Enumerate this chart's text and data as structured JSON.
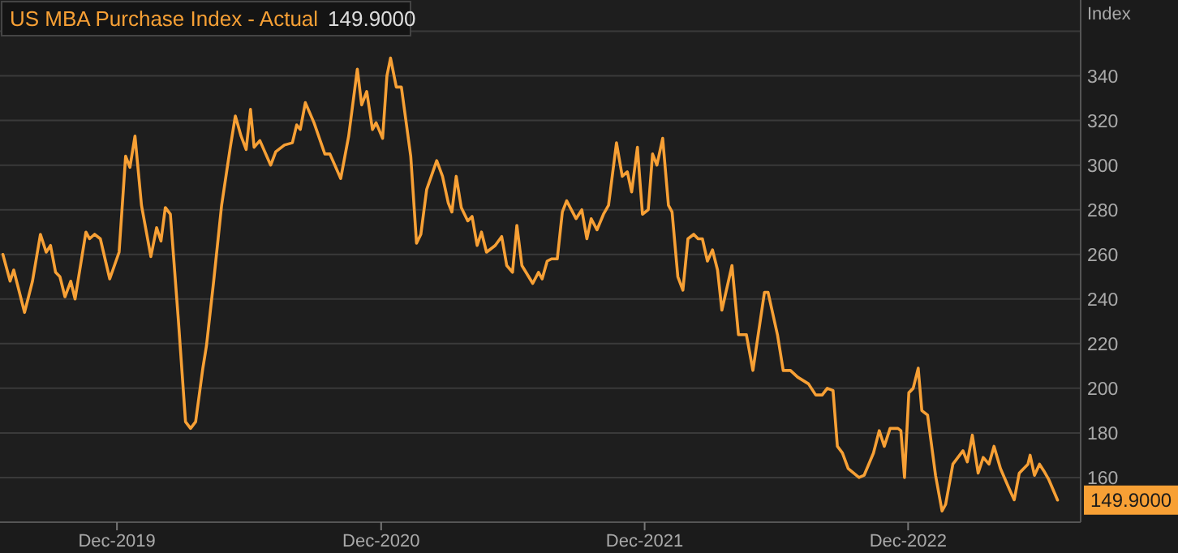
{
  "chart_data": {
    "type": "line",
    "title": "US MBA Purchase Index - Actual",
    "ylabel": "Index",
    "annotations": [
      "149.9000"
    ],
    "xlim": [
      "2019-06-22",
      "2023-07-28"
    ],
    "ylim": [
      140,
      374
    ],
    "xticks": [
      {
        "value": "2019-12-01",
        "label": "Dec-2019"
      },
      {
        "value": "2020-12-01",
        "label": "Dec-2020"
      },
      {
        "value": "2021-12-01",
        "label": "Dec-2021"
      },
      {
        "value": "2022-12-01",
        "label": "Dec-2022"
      }
    ],
    "yticks": [
      160,
      180,
      200,
      220,
      240,
      260,
      280,
      300,
      320,
      340,
      {
        "value": 360,
        "label": null
      }
    ],
    "grid": "y",
    "x": [
      "2019-06-26",
      "2019-07-06",
      "2019-07-11",
      "2019-07-26",
      "2019-08-06",
      "2019-08-17",
      "2019-08-25",
      "2019-08-31",
      "2019-09-07",
      "2019-09-13",
      "2019-09-20",
      "2019-09-28",
      "2019-10-04",
      "2019-10-19",
      "2019-10-24",
      "2019-10-31",
      "2019-11-08",
      "2019-11-21",
      "2019-12-04",
      "2019-12-13",
      "2019-12-19",
      "2019-12-26",
      "2020-01-04",
      "2020-01-17",
      "2020-01-25",
      "2020-01-31",
      "2020-02-06",
      "2020-02-13",
      "2020-02-24",
      "2020-03-05",
      "2020-03-12",
      "2020-03-19",
      "2020-03-29",
      "2020-04-03",
      "2020-04-13",
      "2020-04-24",
      "2020-05-06",
      "2020-05-13",
      "2020-05-21",
      "2020-05-28",
      "2020-06-03",
      "2020-06-08",
      "2020-06-16",
      "2020-07-01",
      "2020-07-08",
      "2020-07-20",
      "2020-07-31",
      "2020-08-06",
      "2020-08-11",
      "2020-08-18",
      "2020-08-30",
      "2020-09-14",
      "2020-09-21",
      "2020-10-06",
      "2020-10-17",
      "2020-10-29",
      "2020-11-04",
      "2020-11-11",
      "2020-11-19",
      "2020-11-24",
      "2020-12-03",
      "2020-12-09",
      "2020-12-14",
      "2020-12-22",
      "2020-12-29",
      "2021-01-11",
      "2021-01-19",
      "2021-01-25",
      "2021-02-02",
      "2021-02-16",
      "2021-02-24",
      "2021-03-04",
      "2021-03-09",
      "2021-03-15",
      "2021-03-22",
      "2021-03-31",
      "2021-04-06",
      "2021-04-13",
      "2021-04-19",
      "2021-04-26",
      "2021-05-08",
      "2021-05-17",
      "2021-05-24",
      "2021-06-01",
      "2021-06-07",
      "2021-06-14",
      "2021-06-29",
      "2021-07-07",
      "2021-07-12",
      "2021-07-19",
      "2021-07-25",
      "2021-08-02",
      "2021-08-09",
      "2021-08-15",
      "2021-08-28",
      "2021-09-05",
      "2021-09-12",
      "2021-09-18",
      "2021-09-26",
      "2021-10-05",
      "2021-10-12",
      "2021-10-23",
      "2021-10-31",
      "2021-11-07",
      "2021-11-13",
      "2021-11-21",
      "2021-11-28",
      "2021-12-06",
      "2021-12-12",
      "2021-12-18",
      "2021-12-26",
      "2022-01-03",
      "2022-01-08",
      "2022-01-16",
      "2022-01-23",
      "2022-01-30",
      "2022-02-07",
      "2022-02-13",
      "2022-02-19",
      "2022-02-26",
      "2022-03-05",
      "2022-03-12",
      "2022-03-18",
      "2022-04-01",
      "2022-04-10",
      "2022-04-21",
      "2022-04-30",
      "2022-05-16",
      "2022-05-21",
      "2022-06-03",
      "2022-06-11",
      "2022-06-21",
      "2022-07-01",
      "2022-07-16",
      "2022-07-26",
      "2022-08-04",
      "2022-08-11",
      "2022-08-19",
      "2022-08-25",
      "2022-09-01",
      "2022-09-09",
      "2022-09-24",
      "2022-10-01",
      "2022-10-14",
      "2022-10-22",
      "2022-10-29",
      "2022-11-06",
      "2022-11-17",
      "2022-11-21",
      "2022-11-26",
      "2022-12-02",
      "2022-12-08",
      "2022-12-15",
      "2022-12-20",
      "2022-12-28",
      "2023-01-08",
      "2023-01-17",
      "2023-01-22",
      "2023-02-01",
      "2023-02-15",
      "2023-02-21",
      "2023-02-28",
      "2023-03-08",
      "2023-03-15",
      "2023-03-23",
      "2023-03-30",
      "2023-04-08",
      "2023-04-20",
      "2023-04-27",
      "2023-05-04",
      "2023-05-16",
      "2023-05-19",
      "2023-05-25",
      "2023-06-01",
      "2023-06-07",
      "2023-06-14",
      "2023-06-26"
    ],
    "series": [
      {
        "color": "#f7a035",
        "values": [
          260,
          248,
          253,
          234,
          248,
          269,
          261,
          264,
          252,
          250,
          241,
          248,
          240,
          270,
          267,
          269,
          267,
          249,
          261,
          304,
          299,
          313,
          282,
          259,
          272,
          266,
          281,
          278,
          231,
          185,
          182,
          185,
          209,
          219,
          248,
          282,
          308,
          322,
          313,
          307,
          325,
          308,
          311,
          300,
          306,
          309,
          310,
          318,
          316,
          328,
          319,
          305,
          305,
          294,
          313,
          343,
          327,
          333,
          316,
          319,
          312,
          340,
          348,
          335,
          335,
          304,
          265,
          269,
          289,
          302,
          295,
          283,
          279,
          295,
          281,
          275,
          277,
          264,
          270,
          261,
          264,
          268,
          255,
          252,
          273,
          255,
          247,
          252,
          249,
          257,
          258,
          258,
          279,
          284,
          276,
          280,
          267,
          276,
          271,
          278,
          282,
          310,
          295,
          297,
          288,
          308,
          278,
          280,
          305,
          300,
          312,
          282,
          279,
          250,
          244,
          267,
          269,
          267,
          267,
          257,
          262,
          253,
          235,
          255,
          224,
          224,
          208,
          243,
          243,
          224,
          208,
          208,
          205,
          202,
          197,
          197,
          200,
          199,
          174,
          171,
          164,
          160,
          161,
          171,
          181,
          174,
          182,
          182,
          181,
          160,
          198,
          200,
          209,
          190,
          188,
          161,
          145,
          148,
          166,
          172,
          167,
          179,
          162,
          169,
          166,
          174,
          164,
          155,
          150,
          162,
          166,
          170,
          161,
          166,
          163,
          159,
          149.9
        ]
      }
    ]
  }
}
